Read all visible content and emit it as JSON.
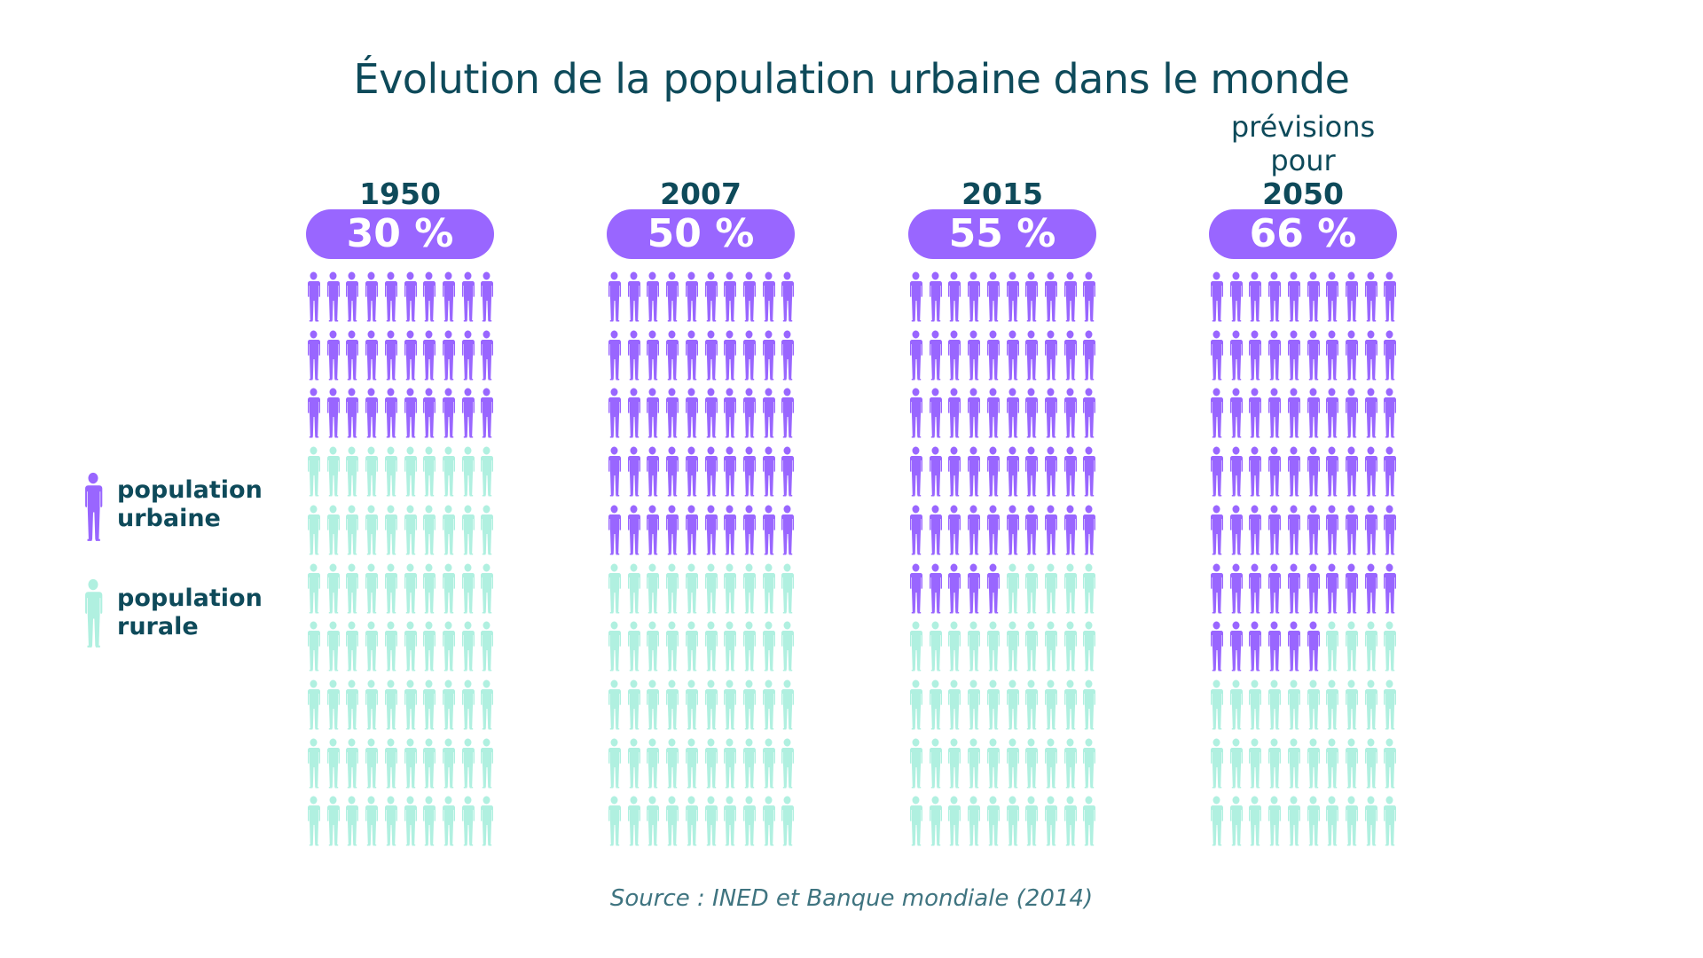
{
  "title": "Évolution de la population urbaine dans le monde",
  "colors": {
    "urban": "#9966ff",
    "rural": "#b0f0e0",
    "text": "#0e4a5a"
  },
  "legend": {
    "urban": {
      "line1": "population",
      "line2": "urbaine",
      "icon": "person-icon"
    },
    "rural": {
      "line1": "population",
      "line2": "rurale",
      "icon": "person-icon"
    }
  },
  "chart_data": {
    "type": "pictogram",
    "title": "Évolution de la population urbaine dans le monde",
    "icons_per_panel": 100,
    "series": [
      {
        "prefix": "",
        "year": "1950",
        "label": "30 %",
        "urban_percent": 30
      },
      {
        "prefix": "",
        "year": "2007",
        "label": "50 %",
        "urban_percent": 50
      },
      {
        "prefix": "",
        "year": "2015",
        "label": "55 %",
        "urban_percent": 55
      },
      {
        "prefix": "prévisions pour",
        "year": "2050",
        "label": "66 %",
        "urban_percent": 66
      }
    ]
  },
  "source": "Source : INED et Banque mondiale (2014)"
}
